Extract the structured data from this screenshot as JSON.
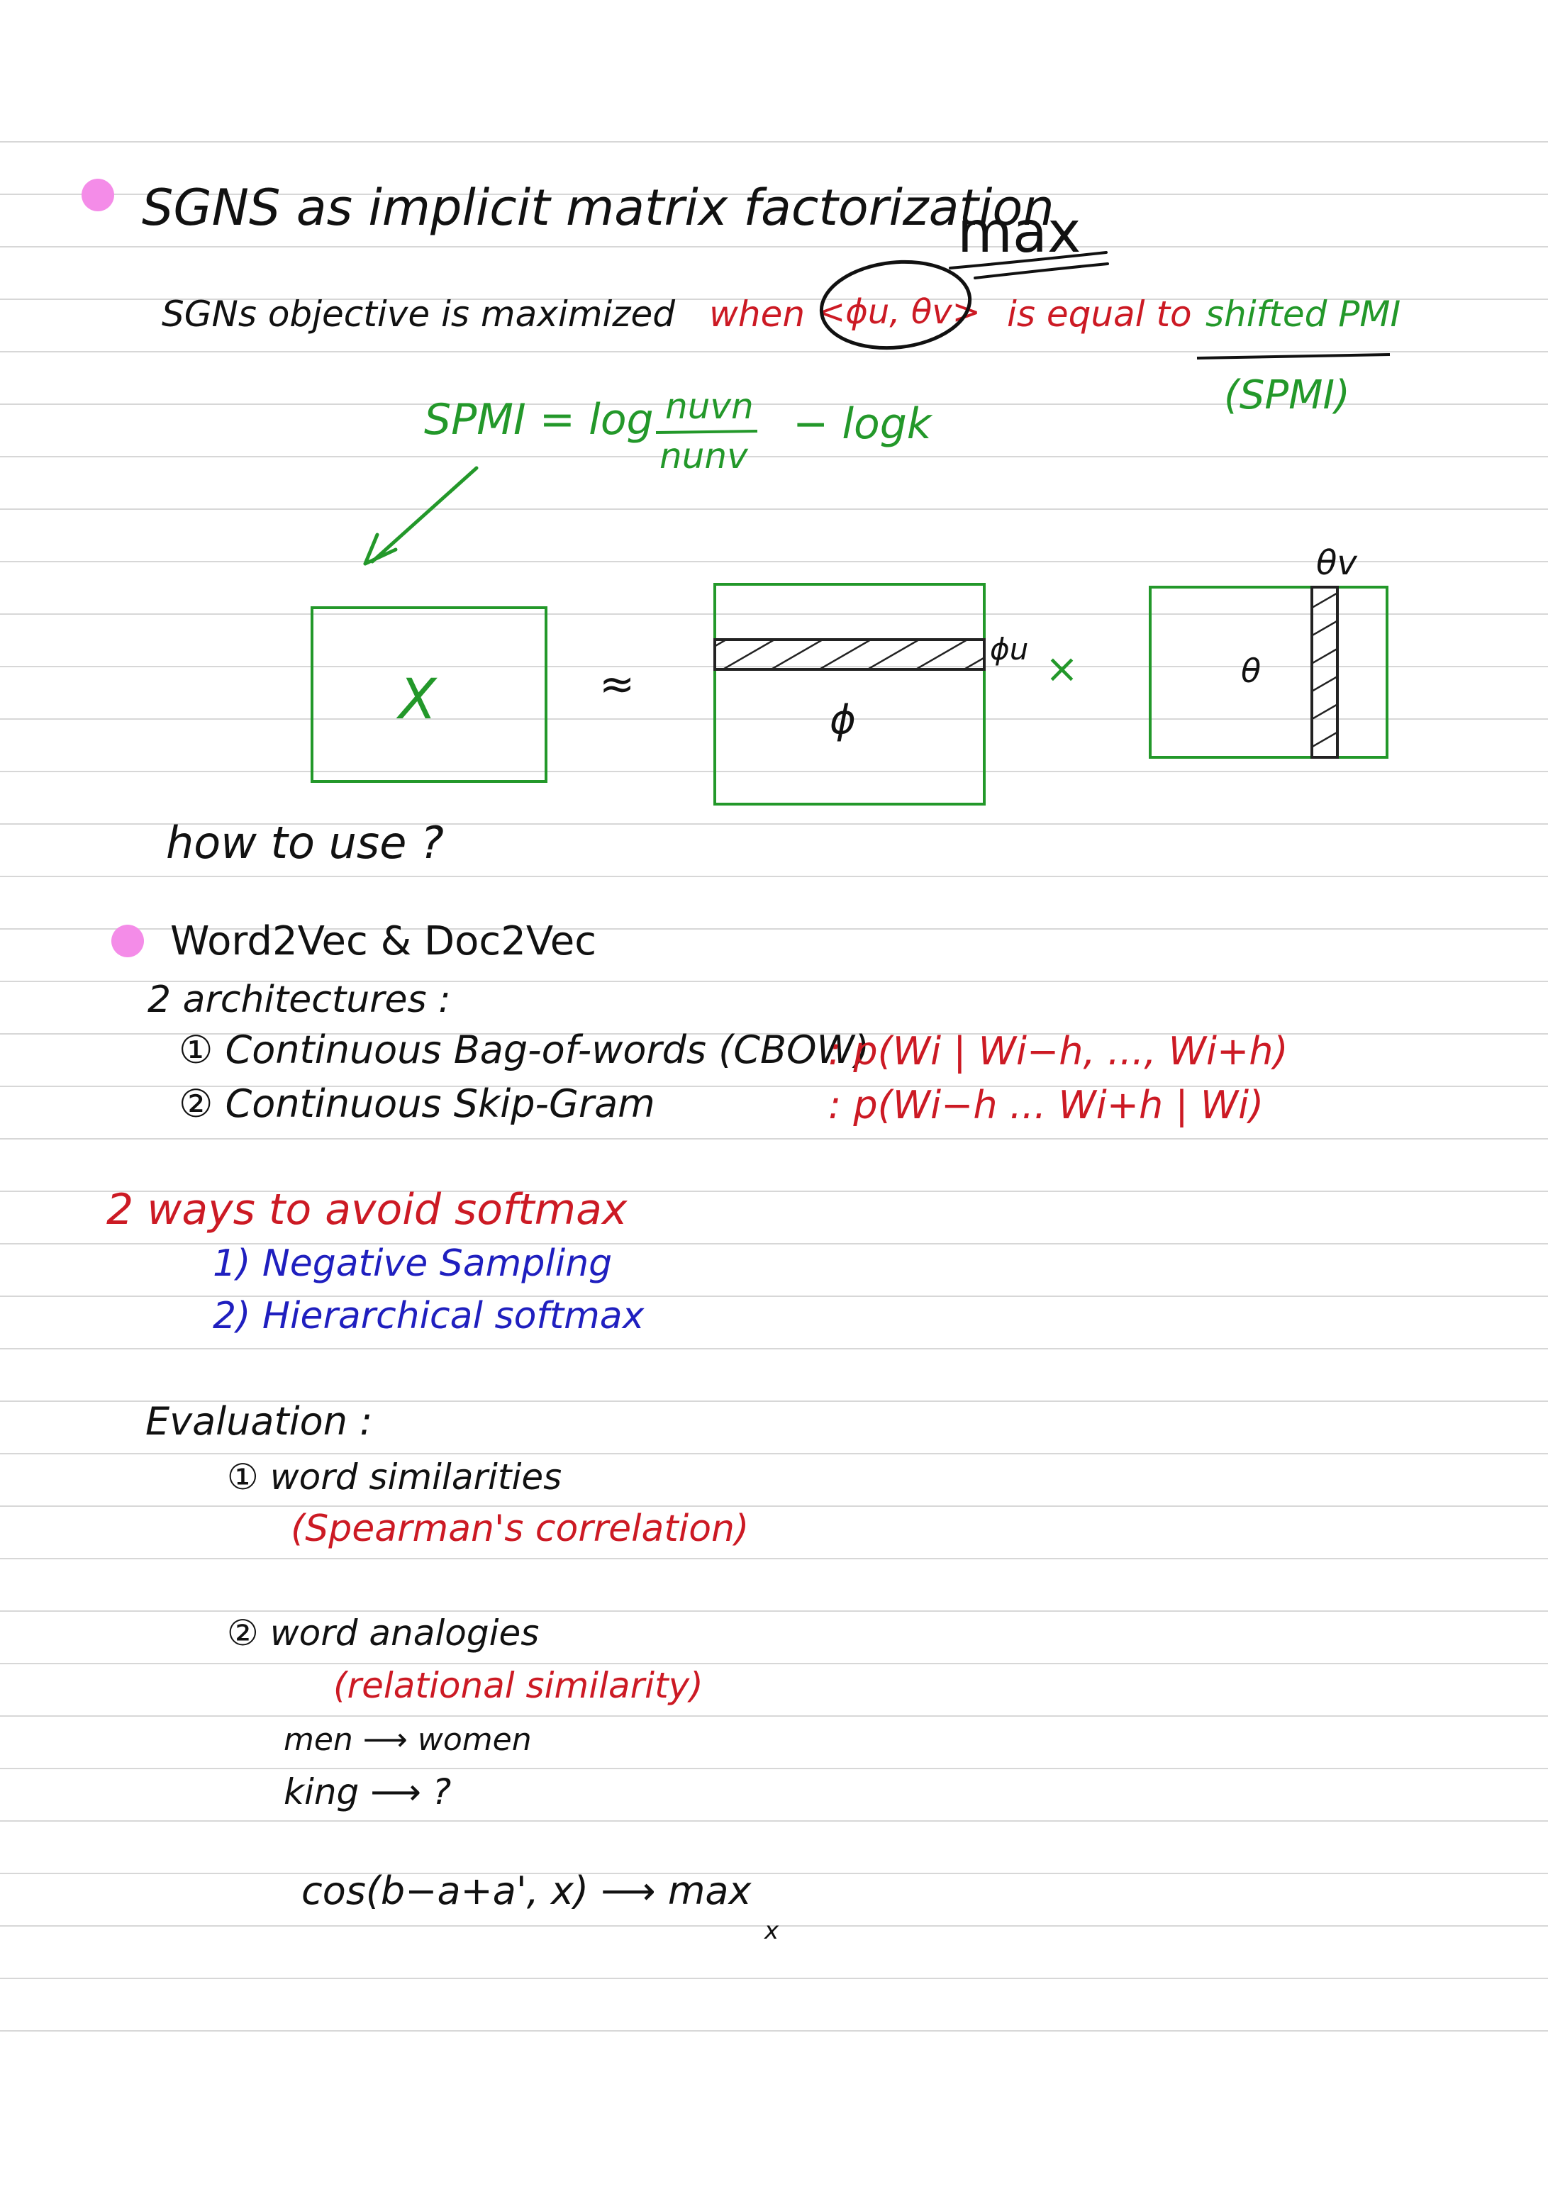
{
  "colors": {
    "ink": "#111111",
    "red": "#cc1a24",
    "green": "#23982a",
    "blue": "#1f1fbf",
    "bullet": "#f48ce8",
    "rule": "#d7d7d7"
  },
  "section1": {
    "title": "SGNS as implicit matrix factorization",
    "max_note": "max",
    "objective": {
      "lead": "SGNs objective is maximized",
      "when": "when",
      "inner": "<ϕu, θv>",
      "equal": "is equal to",
      "shifted": "shifted PMI",
      "abbr": "(SPMI)"
    },
    "formula": {
      "lhs": "SPMI = log",
      "num": "nuvn",
      "den": "nunv",
      "tail": "− logk"
    },
    "matrices": {
      "x": "X",
      "approx": "≈",
      "phi": "ϕ",
      "phi_u": "ϕu",
      "times": "×",
      "theta": "θ",
      "theta_v": "θv"
    },
    "question": "how to use ?"
  },
  "section2": {
    "title": "Word2Vec & Doc2Vec",
    "arch_heading": "2 architectures :",
    "arch": [
      {
        "label": "① Continuous Bag-of-words (CBOW)",
        "formula": ": p(Wi | Wi−h, ..., Wi+h)"
      },
      {
        "label": "② Continuous Skip-Gram",
        "formula": ": p(Wi−h ... Wi+h | Wi)"
      }
    ],
    "softmax_heading": "2 ways to avoid softmax",
    "softmax_ways": [
      "1) Negative Sampling",
      "2) Hierarchical softmax"
    ],
    "eval_heading": "Evaluation :",
    "eval": [
      {
        "label": "① word similarities",
        "note": "(Spearman's correlation)"
      },
      {
        "label": "② word analogies",
        "note": "(relational similarity)"
      }
    ],
    "analogy": [
      "men ⟶ women",
      "king ⟶ ?"
    ],
    "cos": "cos(b−a+a', x) ⟶ max",
    "cos_sub": "x"
  }
}
